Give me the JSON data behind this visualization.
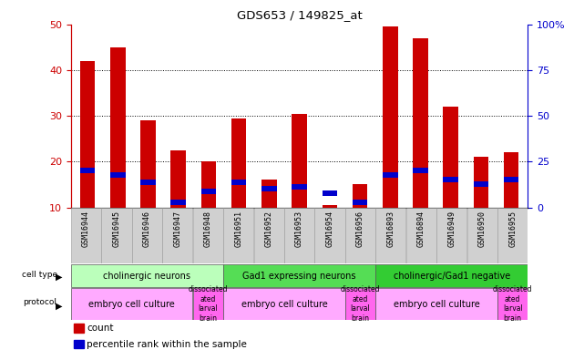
{
  "title": "GDS653 / 149825_at",
  "samples": [
    "GSM16944",
    "GSM16945",
    "GSM16946",
    "GSM16947",
    "GSM16948",
    "GSM16951",
    "GSM16952",
    "GSM16953",
    "GSM16954",
    "GSM16956",
    "GSM16893",
    "GSM16894",
    "GSM16949",
    "GSM16950",
    "GSM16955"
  ],
  "count_values": [
    42,
    45,
    29,
    22.5,
    20,
    29.5,
    16,
    30.5,
    10.5,
    15,
    49.5,
    47,
    32,
    21,
    22
  ],
  "percentile_values": [
    18,
    17,
    15.5,
    11,
    13.5,
    15.5,
    14,
    14.5,
    13,
    11,
    17,
    18,
    16,
    15,
    16
  ],
  "ylim_left": [
    10,
    50
  ],
  "ylim_right": [
    0,
    100
  ],
  "yticks_left": [
    10,
    20,
    30,
    40,
    50
  ],
  "yticks_right": [
    0,
    25,
    50,
    75,
    100
  ],
  "bar_color_red": "#cc0000",
  "bar_color_blue": "#0000cc",
  "cell_type_groups": [
    {
      "label": "cholinergic neurons",
      "start": 0,
      "end": 5,
      "color": "#bbffbb"
    },
    {
      "label": "Gad1 expressing neurons",
      "start": 5,
      "end": 10,
      "color": "#55dd55"
    },
    {
      "label": "cholinergic/Gad1 negative",
      "start": 10,
      "end": 15,
      "color": "#33cc33"
    }
  ],
  "protocol_groups": [
    {
      "label": "embryo cell culture",
      "start": 0,
      "end": 4,
      "color": "#ffaaff"
    },
    {
      "label": "dissociated\nated\nlarval\nbrain",
      "start": 4,
      "end": 5,
      "color": "#ff66ff"
    },
    {
      "label": "embryo cell culture",
      "start": 5,
      "end": 9,
      "color": "#ffaaff"
    },
    {
      "label": "dissociated\nated\nlarval\nbrain",
      "start": 9,
      "end": 10,
      "color": "#ff66ff"
    },
    {
      "label": "embryo cell culture",
      "start": 10,
      "end": 14,
      "color": "#ffaaff"
    },
    {
      "label": "dissociated\nated\nlarval\nbrain",
      "start": 14,
      "end": 15,
      "color": "#ff66ff"
    }
  ],
  "legend_red_label": "count",
  "legend_blue_label": "percentile rank within the sample",
  "fig_bg": "#ffffff",
  "plot_bg": "#ffffff",
  "left_axis_color": "#cc0000",
  "right_axis_color": "#0000cc",
  "xtick_bg": "#d0d0d0",
  "bar_width": 0.5
}
